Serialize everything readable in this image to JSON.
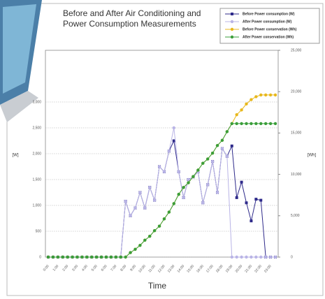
{
  "chart_data": {
    "type": "line",
    "title": "Before and After Air Conditioning and Power Consumption Measurements",
    "x_label": "Time",
    "y_label": "[W]",
    "y2_label": "[Wh]",
    "categories": [
      "0:00",
      null,
      "1:00",
      null,
      "2:00",
      null,
      "3:00",
      null,
      "4:00",
      null,
      "5:00",
      null,
      "6:00",
      null,
      "7:00",
      null,
      "8:00",
      null,
      "9:00",
      null,
      "10:00",
      null,
      "11:00",
      null,
      "12:00",
      null,
      "13:00",
      null,
      "14:00",
      null,
      "15:00",
      null,
      "16:00",
      null,
      "17:00",
      null,
      "18:00",
      null,
      "19:00",
      null,
      "20:00",
      null,
      "21:00",
      null,
      "22:00",
      null,
      "23:00",
      null
    ],
    "ylim": [
      0,
      4000
    ],
    "yticks": [
      0,
      500,
      {
        "value": 1000,
        "label": "1,000"
      },
      {
        "value": 1500,
        "label": "1,500"
      },
      {
        "value": 2000,
        "label": "2,000"
      },
      {
        "value": 2500,
        "label": "2,500"
      },
      {
        "value": 3000,
        "label": "3,000"
      }
    ],
    "y2lim": [
      0,
      25000
    ],
    "y2ticks": [
      0,
      {
        "value": 5000,
        "label": "5,000"
      },
      {
        "value": 10000,
        "label": "10,000"
      },
      {
        "value": 15000,
        "label": "15,000"
      },
      {
        "value": 20000,
        "label": "20,000"
      },
      {
        "value": 25000,
        "label": "25,000"
      }
    ],
    "grid": true,
    "legend": "top-right",
    "series": [
      {
        "name": "Before Power consumption (W)",
        "color": "#2e2a8a",
        "marker": "square",
        "values": [
          0,
          0,
          0,
          0,
          0,
          0,
          0,
          0,
          0,
          0,
          0,
          0,
          0,
          0,
          0,
          0,
          1080,
          800,
          950,
          1250,
          950,
          1350,
          1100,
          1750,
          1650,
          2050,
          2250,
          1650,
          1150,
          1500,
          1550,
          1650,
          1050,
          1400,
          1850,
          1250,
          2100,
          1950,
          2150,
          1150,
          1450,
          1050,
          700,
          1120,
          1100,
          0,
          0,
          0
        ]
      },
      {
        "name": "After Power consumption (W)",
        "color": "#b9b4e6",
        "marker": "circle",
        "values": [
          0,
          0,
          0,
          0,
          0,
          0,
          0,
          0,
          0,
          0,
          0,
          0,
          0,
          0,
          0,
          0,
          1080,
          800,
          950,
          1250,
          950,
          1350,
          1100,
          1750,
          1650,
          2050,
          2500,
          1650,
          1150,
          1500,
          1550,
          1650,
          1050,
          1400,
          1850,
          1250,
          2100,
          1950,
          0,
          0,
          0,
          0,
          0,
          0,
          0,
          0,
          0,
          0
        ]
      },
      {
        "name": "Before Power conservation (Wh)",
        "color": "#e8b81c",
        "marker": "circle",
        "axis": "y2",
        "values": [
          0,
          0,
          0,
          0,
          0,
          0,
          0,
          0,
          0,
          0,
          0,
          0,
          0,
          0,
          0,
          0,
          0,
          540,
          940,
          1415,
          2040,
          2515,
          3190,
          3740,
          4615,
          5440,
          6465,
          7590,
          8415,
          8990,
          9740,
          10515,
          11340,
          11865,
          12565,
          13490,
          14115,
          15165,
          16140,
          17215,
          17790,
          18515,
          19040,
          19390,
          19600,
          19600,
          19600,
          19600
        ]
      },
      {
        "name": "After Power conservation (Wh)",
        "color": "#3a9e3a",
        "marker": "circle",
        "axis": "y2",
        "values": [
          0,
          0,
          0,
          0,
          0,
          0,
          0,
          0,
          0,
          0,
          0,
          0,
          0,
          0,
          0,
          0,
          0,
          540,
          940,
          1415,
          2040,
          2515,
          3190,
          3740,
          4615,
          5440,
          6465,
          7590,
          8415,
          8990,
          9740,
          10515,
          11340,
          11865,
          12565,
          13490,
          14115,
          15165,
          16140,
          16140,
          16140,
          16140,
          16140,
          16140,
          16140,
          16140,
          16140,
          16140
        ]
      }
    ]
  }
}
